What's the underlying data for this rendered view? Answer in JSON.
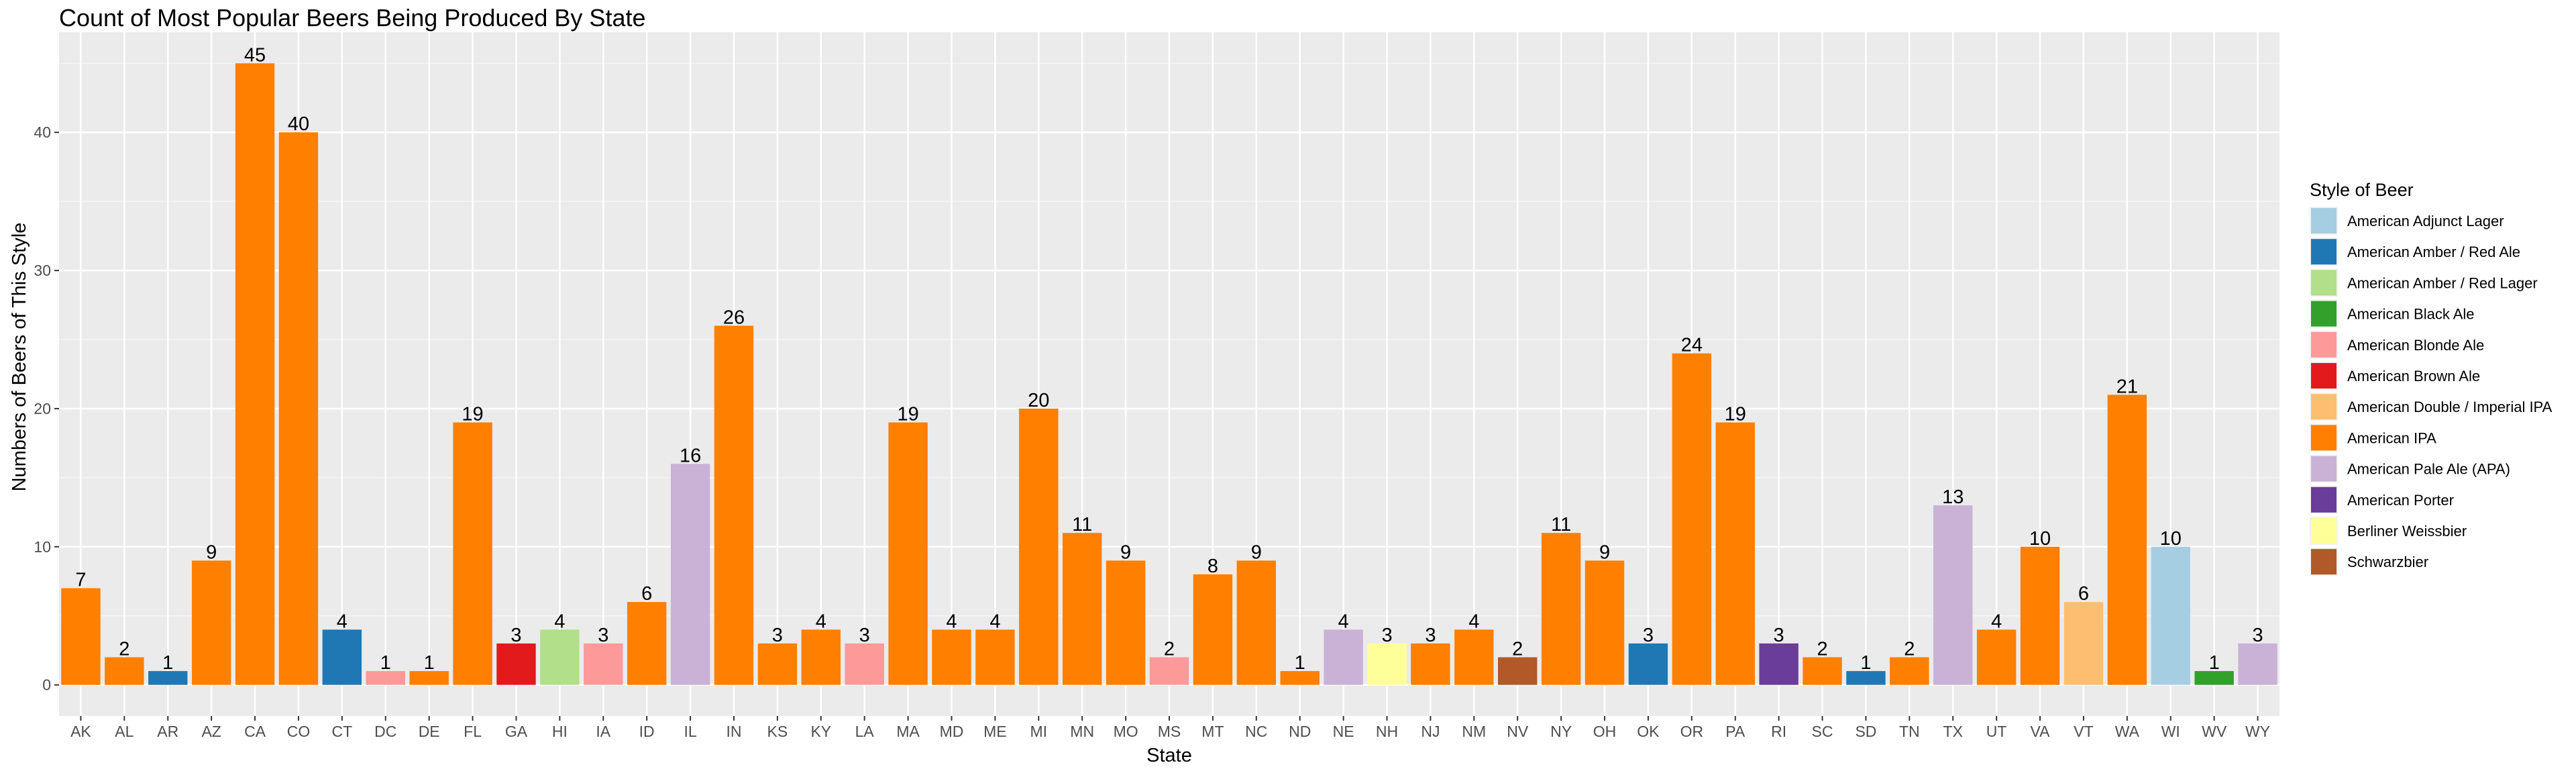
{
  "chart_data": {
    "type": "bar",
    "title": "Count of Most Popular Beers Being Produced By State",
    "xlabel": "State",
    "ylabel": "Numbers of Beers of This Style",
    "ylim": [
      -2.25,
      47.25
    ],
    "yticks": [
      0,
      10,
      20,
      30,
      40
    ],
    "grid": true,
    "legend_position": "right",
    "legend_title": "Style of Beer",
    "styles": [
      {
        "name": "American Adjunct Lager",
        "color": "#a6cee3"
      },
      {
        "name": "American Amber / Red Ale",
        "color": "#1f78b4"
      },
      {
        "name": "American Amber / Red Lager",
        "color": "#b2df8a"
      },
      {
        "name": "American Black Ale",
        "color": "#33a02c"
      },
      {
        "name": "American Blonde Ale",
        "color": "#fb9a99"
      },
      {
        "name": "American Brown Ale",
        "color": "#e31a1c"
      },
      {
        "name": "American Double / Imperial IPA",
        "color": "#fdbf6f"
      },
      {
        "name": "American IPA",
        "color": "#ff7f00"
      },
      {
        "name": "American Pale Ale (APA)",
        "color": "#cab2d6"
      },
      {
        "name": "American Porter",
        "color": "#6a3d9a"
      },
      {
        "name": "Berliner Weissbier",
        "color": "#ffff99"
      },
      {
        "name": "Schwarzbier",
        "color": "#b15928"
      }
    ],
    "bars": [
      {
        "state": "AK",
        "value": 7,
        "style": "American IPA"
      },
      {
        "state": "AL",
        "value": 2,
        "style": "American IPA"
      },
      {
        "state": "AR",
        "value": 1,
        "style": "American Amber / Red Ale"
      },
      {
        "state": "AZ",
        "value": 9,
        "style": "American IPA"
      },
      {
        "state": "CA",
        "value": 45,
        "style": "American IPA"
      },
      {
        "state": "CO",
        "value": 40,
        "style": "American IPA"
      },
      {
        "state": "CT",
        "value": 4,
        "style": "American Amber / Red Ale"
      },
      {
        "state": "DC",
        "value": 1,
        "style": "American Blonde Ale"
      },
      {
        "state": "DE",
        "value": 1,
        "style": "American IPA"
      },
      {
        "state": "FL",
        "value": 19,
        "style": "American IPA"
      },
      {
        "state": "GA",
        "value": 3,
        "style": "American Brown Ale"
      },
      {
        "state": "HI",
        "value": 4,
        "style": "American Amber / Red Lager"
      },
      {
        "state": "IA",
        "value": 3,
        "style": "American Blonde Ale"
      },
      {
        "state": "ID",
        "value": 6,
        "style": "American IPA"
      },
      {
        "state": "IL",
        "value": 16,
        "style": "American Pale Ale (APA)"
      },
      {
        "state": "IN",
        "value": 26,
        "style": "American IPA"
      },
      {
        "state": "KS",
        "value": 3,
        "style": "American IPA"
      },
      {
        "state": "KY",
        "value": 4,
        "style": "American IPA"
      },
      {
        "state": "LA",
        "value": 3,
        "style": "American Blonde Ale"
      },
      {
        "state": "MA",
        "value": 19,
        "style": "American IPA"
      },
      {
        "state": "MD",
        "value": 4,
        "style": "American IPA"
      },
      {
        "state": "ME",
        "value": 4,
        "style": "American IPA"
      },
      {
        "state": "MI",
        "value": 20,
        "style": "American IPA"
      },
      {
        "state": "MN",
        "value": 11,
        "style": "American IPA"
      },
      {
        "state": "MO",
        "value": 9,
        "style": "American IPA"
      },
      {
        "state": "MS",
        "value": 2,
        "style": "American Blonde Ale"
      },
      {
        "state": "MT",
        "value": 8,
        "style": "American IPA"
      },
      {
        "state": "NC",
        "value": 9,
        "style": "American IPA"
      },
      {
        "state": "ND",
        "value": 1,
        "style": "American IPA"
      },
      {
        "state": "NE",
        "value": 4,
        "style": "American Pale Ale (APA)"
      },
      {
        "state": "NH",
        "value": 3,
        "style": "Berliner Weissbier"
      },
      {
        "state": "NJ",
        "value": 3,
        "style": "American IPA"
      },
      {
        "state": "NM",
        "value": 4,
        "style": "American IPA"
      },
      {
        "state": "NV",
        "value": 2,
        "style": "Schwarzbier"
      },
      {
        "state": "NY",
        "value": 11,
        "style": "American IPA"
      },
      {
        "state": "OH",
        "value": 9,
        "style": "American IPA"
      },
      {
        "state": "OK",
        "value": 3,
        "style": "American Amber / Red Ale"
      },
      {
        "state": "OR",
        "value": 24,
        "style": "American IPA"
      },
      {
        "state": "PA",
        "value": 19,
        "style": "American IPA"
      },
      {
        "state": "RI",
        "value": 3,
        "style": "American Porter"
      },
      {
        "state": "SC",
        "value": 2,
        "style": "American IPA"
      },
      {
        "state": "SD",
        "value": 1,
        "style": "American Amber / Red Ale"
      },
      {
        "state": "TN",
        "value": 2,
        "style": "American IPA"
      },
      {
        "state": "TX",
        "value": 13,
        "style": "American Pale Ale (APA)"
      },
      {
        "state": "UT",
        "value": 4,
        "style": "American IPA"
      },
      {
        "state": "VA",
        "value": 10,
        "style": "American IPA"
      },
      {
        "state": "VT",
        "value": 6,
        "style": "American Double / Imperial IPA"
      },
      {
        "state": "WA",
        "value": 21,
        "style": "American IPA"
      },
      {
        "state": "WI",
        "value": 10,
        "style": "American Adjunct Lager"
      },
      {
        "state": "WV",
        "value": 1,
        "style": "American Black Ale"
      },
      {
        "state": "WY",
        "value": 3,
        "style": "American Pale Ale (APA)"
      }
    ]
  }
}
